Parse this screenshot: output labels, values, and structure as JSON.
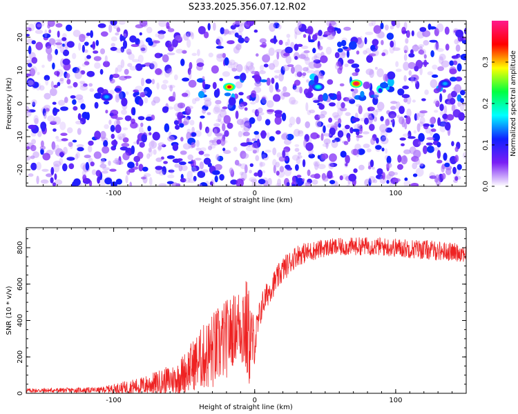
{
  "title": "S233.2025.356.07.12.R02",
  "chart_data": [
    {
      "type": "heatmap",
      "xlabel": "Height of straight line (km)",
      "ylabel": "Frequency (Hz)",
      "xlim": [
        -162,
        150
      ],
      "ylim": [
        -25,
        25
      ],
      "xticks": [
        -100,
        0,
        100
      ],
      "yticks": [
        -20,
        -10,
        0,
        10,
        20
      ],
      "grid": false,
      "colorbar": {
        "label": "Normalized spectral amplitude",
        "range": [
          0.0,
          0.4
        ],
        "ticks": [
          0.0,
          0.1,
          0.2,
          0.3
        ],
        "colors": [
          "#ffffff",
          "#7a1ff5",
          "#1020ff",
          "#00ffff",
          "#00ff40",
          "#ffff00",
          "#ff0000",
          "#ff1a8c"
        ]
      },
      "features": [
        {
          "x": -105,
          "y": 2,
          "value": 0.15
        },
        {
          "x": -18,
          "y": 5,
          "value": 0.35
        },
        {
          "x": 45,
          "y": 5,
          "value": 0.18
        },
        {
          "x": 72,
          "y": 6,
          "value": 0.38
        },
        {
          "x": 135,
          "y": 6,
          "value": 0.15
        }
      ],
      "band": {
        "y": 5,
        "x_range": [
          -40,
          150
        ]
      }
    },
    {
      "type": "line",
      "xlabel": "Height of straight line (km)",
      "ylabel": "SNR (10 * v/v)",
      "xlim": [
        -162,
        150
      ],
      "ylim": [
        0,
        910
      ],
      "xticks": [
        -100,
        0,
        100
      ],
      "yticks": [
        0,
        200,
        400,
        600,
        800
      ],
      "grid": false,
      "series": [
        {
          "color": "#ee2222",
          "envelope": {
            "x": [
              -162,
              -110,
              -80,
              -55,
              -40,
              -30,
              -20,
              -12,
              -8,
              -4,
              0,
              5,
              10,
              20,
              30,
              50,
              80,
              120,
              150
            ],
            "base": [
              15,
              18,
              40,
              80,
              180,
              230,
              300,
              380,
              400,
              300,
              280,
              480,
              560,
              680,
              760,
              800,
              810,
              790,
              770
            ],
            "amplitude": [
              12,
              15,
              50,
              90,
              160,
              220,
              220,
              180,
              300,
              280,
              120,
              80,
              70,
              70,
              60,
              50,
              50,
              55,
              50
            ]
          }
        }
      ]
    }
  ]
}
